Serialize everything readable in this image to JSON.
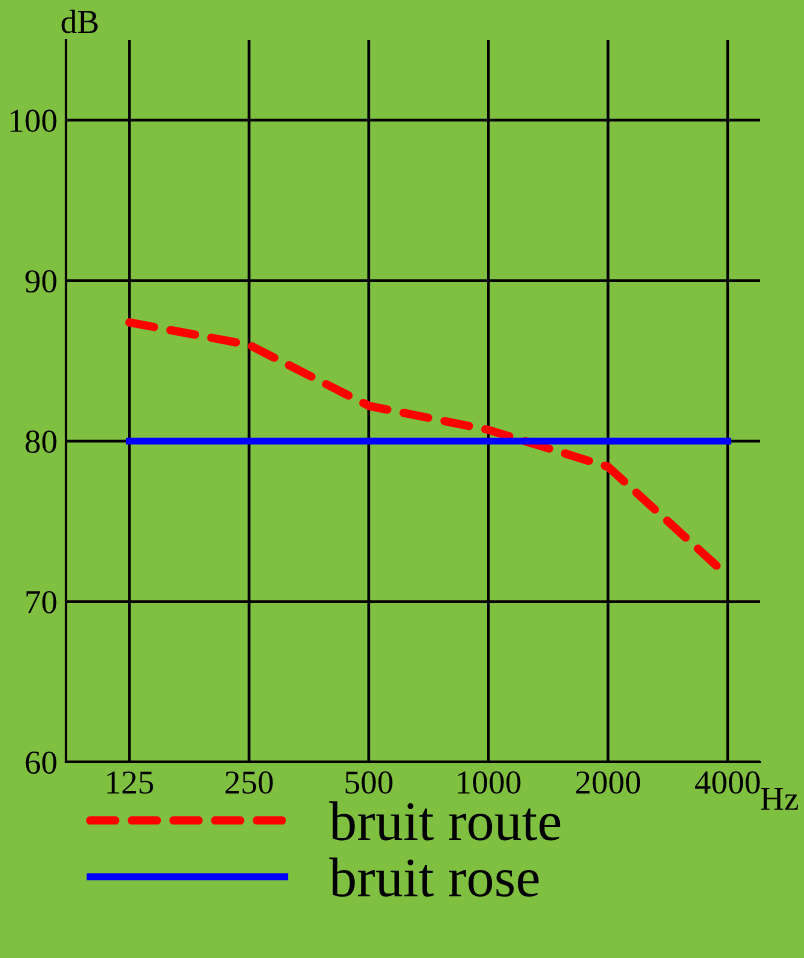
{
  "chart_data": {
    "type": "line",
    "xlabel": "Hz",
    "ylabel": "dB",
    "categories": [
      "125",
      "250",
      "500",
      "1000",
      "2000",
      "4000"
    ],
    "series": [
      {
        "name": "bruit route",
        "color": "#ff0000",
        "line_style": "dashed",
        "values": [
          87.4,
          86.0,
          82.2,
          80.7,
          78.4,
          71.6
        ]
      },
      {
        "name": "bruit rose",
        "color": "#0000ff",
        "line_style": "solid",
        "values": [
          80,
          80,
          80,
          80,
          80,
          80
        ]
      }
    ],
    "ylim": [
      60,
      105
    ],
    "yticks": [
      60,
      70,
      80,
      90,
      100
    ],
    "grid": true,
    "legend": "bottom left",
    "marker": "none"
  }
}
